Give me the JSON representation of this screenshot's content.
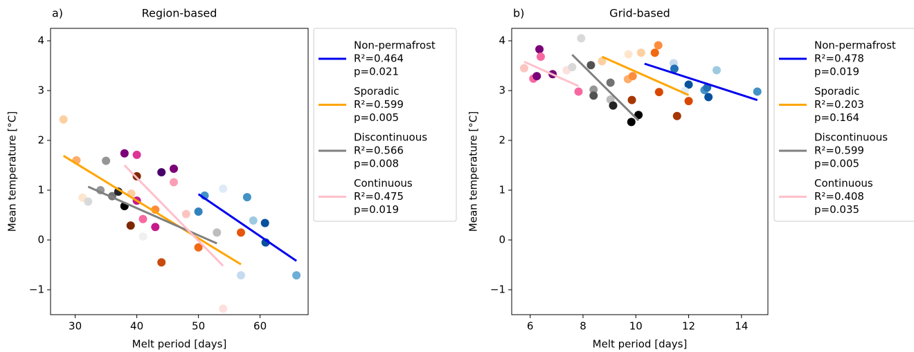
{
  "chart_data": [
    {
      "type": "scatter",
      "panel_label": "a)",
      "title": "Region-based",
      "xlabel": "Melt period [days]",
      "ylabel": "Mean temperature [°C]",
      "xlim": [
        26,
        67.8
      ],
      "ylim": [
        -1.5,
        4.25
      ],
      "xticks": [
        30,
        40,
        50,
        60
      ],
      "yticks": [
        {
          "value": -1,
          "label": "−1"
        },
        0,
        1,
        2,
        3,
        4
      ],
      "legend": "outside right",
      "points": {
        "x": [
          28.1,
          30.2,
          31.2,
          39.1,
          43,
          44,
          50,
          56.9,
          50,
          51,
          54,
          57.9,
          58.9,
          60.8,
          60.9,
          65.9,
          56.9,
          32.1,
          35,
          34.1,
          36,
          38,
          37,
          41,
          53,
          54,
          38,
          40,
          40,
          40,
          39,
          41,
          43,
          44,
          46,
          46,
          48
        ],
        "y": [
          2.42,
          1.6,
          0.85,
          0.93,
          0.61,
          -0.45,
          -0.15,
          0.15,
          0.57,
          0.89,
          1.03,
          0.86,
          0.39,
          0.34,
          -0.05,
          -0.71,
          -0.71,
          0.77,
          1.59,
          1.0,
          0.88,
          0.68,
          0.97,
          0.07,
          0.15,
          -1.38,
          1.74,
          1.71,
          0.79,
          1.28,
          0.29,
          0.42,
          0.26,
          1.36,
          1.43,
          1.16,
          0.52
        ],
        "colors": [
          "#fdd0a2",
          "#fdae6b",
          "#fee6ce",
          "#fdd0a2",
          "#fd8d3c",
          "#c84a0e",
          "#f16913",
          "#e6550d",
          "#3182bd",
          "#4292c6",
          "#deebf7",
          "#4292c6",
          "#9ecae1",
          "#08519c",
          "#08519c",
          "#6baed6",
          "#c6dbef",
          "#d9d9d9",
          "#969696",
          "#969696",
          "#737373",
          "#000000",
          "#252525",
          "#f0f0f0",
          "#bdbdbd",
          "#fde0dd",
          "#7a0177",
          "#dd3497",
          "#c51b8a",
          "#7f2704",
          "#7f2704",
          "#f768a1",
          "#c51b8a",
          "#49006a",
          "#7a0177",
          "#fa9fb5",
          "#fcc5c0"
        ]
      },
      "series": [
        {
          "name": "Non-permafrost",
          "stats": [
            "R²=0.464",
            "p=0.021"
          ],
          "color": "#0000ee",
          "x": [
            50,
            65.9
          ],
          "values": [
            0.92,
            -0.42
          ]
        },
        {
          "name": "Sporadic",
          "stats": [
            "R²=0.599",
            "p=0.005"
          ],
          "color": "#ffa500",
          "x": [
            28.1,
            56.9
          ],
          "values": [
            1.69,
            -0.49
          ]
        },
        {
          "name": "Discontinuous",
          "stats": [
            "R²=0.566",
            "p=0.008"
          ],
          "color": "#808080",
          "x": [
            32.1,
            53
          ],
          "values": [
            1.07,
            -0.07
          ]
        },
        {
          "name": "Continuous",
          "stats": [
            "R²=0.475",
            "p=0.019"
          ],
          "color": "#ffc0cb",
          "x": [
            38,
            54
          ],
          "values": [
            1.5,
            -0.52
          ]
        }
      ]
    },
    {
      "type": "scatter",
      "panel_label": "b)",
      "title": "Grid-based",
      "xlabel": "Melt period [days]",
      "ylabel": "Mean temperature [°C]",
      "xlim": [
        5.3,
        15.0
      ],
      "ylim": [
        -1.5,
        4.25
      ],
      "xticks": [
        6,
        8,
        10,
        12,
        14
      ],
      "yticks": [
        {
          "value": -1,
          "label": "−1"
        },
        0,
        1,
        2,
        3,
        4
      ],
      "legend": "outside right",
      "points": {
        "x": [
          5.77,
          6.12,
          6.25,
          6.35,
          6.4,
          6.85,
          7.38,
          7.59,
          7.83,
          7.93,
          8.3,
          8.4,
          8.4,
          8.72,
          9.04,
          9.04,
          9.14,
          9.7,
          9.72,
          9.88,
          9.85,
          9.83,
          10.1,
          10.2,
          10.72,
          10.85,
          10.88,
          11.43,
          11.46,
          11.56,
          12.0,
          12.0,
          11.85,
          12.6,
          12.7,
          12.75,
          13.06,
          14.6
        ],
        "y": [
          3.45,
          3.24,
          3.29,
          3.83,
          3.68,
          3.33,
          3.41,
          3.47,
          2.98,
          4.05,
          3.51,
          3.02,
          2.9,
          3.59,
          3.16,
          2.82,
          2.7,
          3.23,
          3.73,
          3.29,
          2.81,
          2.37,
          2.51,
          3.76,
          3.76,
          3.91,
          2.97,
          3.55,
          3.44,
          2.49,
          3.12,
          2.79,
          2.99,
          3.01,
          3.06,
          2.87,
          3.41,
          2.98
        ],
        "colors": [
          "#fcc5c0",
          "#f768a1",
          "#7a0177",
          "#7a0177",
          "#f768a1",
          "#7a0177",
          "#fde0dd",
          "#d9d9d9",
          "#f768a1",
          "#d9d9d9",
          "#525252",
          "#969696",
          "#525252",
          "#fdd0a2",
          "#737373",
          "#bdbdbd",
          "#252525",
          "#fdae6b",
          "#fee6ce",
          "#fd8d3c",
          "#a63603",
          "#000000",
          "#000000",
          "#fdd0a2",
          "#f16913",
          "#fd8d3c",
          "#d94801",
          "#c6dbef",
          "#2171b5",
          "#a63603",
          "#08519c",
          "#d94801",
          "#deebf7",
          "#4292c6",
          "#2171b5",
          "#08519c",
          "#9ecae1",
          "#4292c6"
        ]
      },
      "series": [
        {
          "name": "Non-permafrost",
          "stats": [
            "R²=0.478",
            "p=0.019"
          ],
          "color": "#0000ee",
          "x": [
            10.33,
            14.6
          ],
          "values": [
            3.54,
            2.81
          ]
        },
        {
          "name": "Sporadic",
          "stats": [
            "R²=0.203",
            "p=0.164"
          ],
          "color": "#ffa500",
          "x": [
            8.72,
            12.0
          ],
          "values": [
            3.68,
            2.91
          ]
        },
        {
          "name": "Discontinuous",
          "stats": [
            "R²=0.599",
            "p=0.005"
          ],
          "color": "#808080",
          "x": [
            7.59,
            10.1
          ],
          "values": [
            3.72,
            2.4
          ]
        },
        {
          "name": "Continuous",
          "stats": [
            "R²=0.408",
            "p=0.035"
          ],
          "color": "#ffc0cb",
          "x": [
            5.77,
            7.83
          ],
          "values": [
            3.58,
            3.09
          ]
        }
      ]
    }
  ]
}
